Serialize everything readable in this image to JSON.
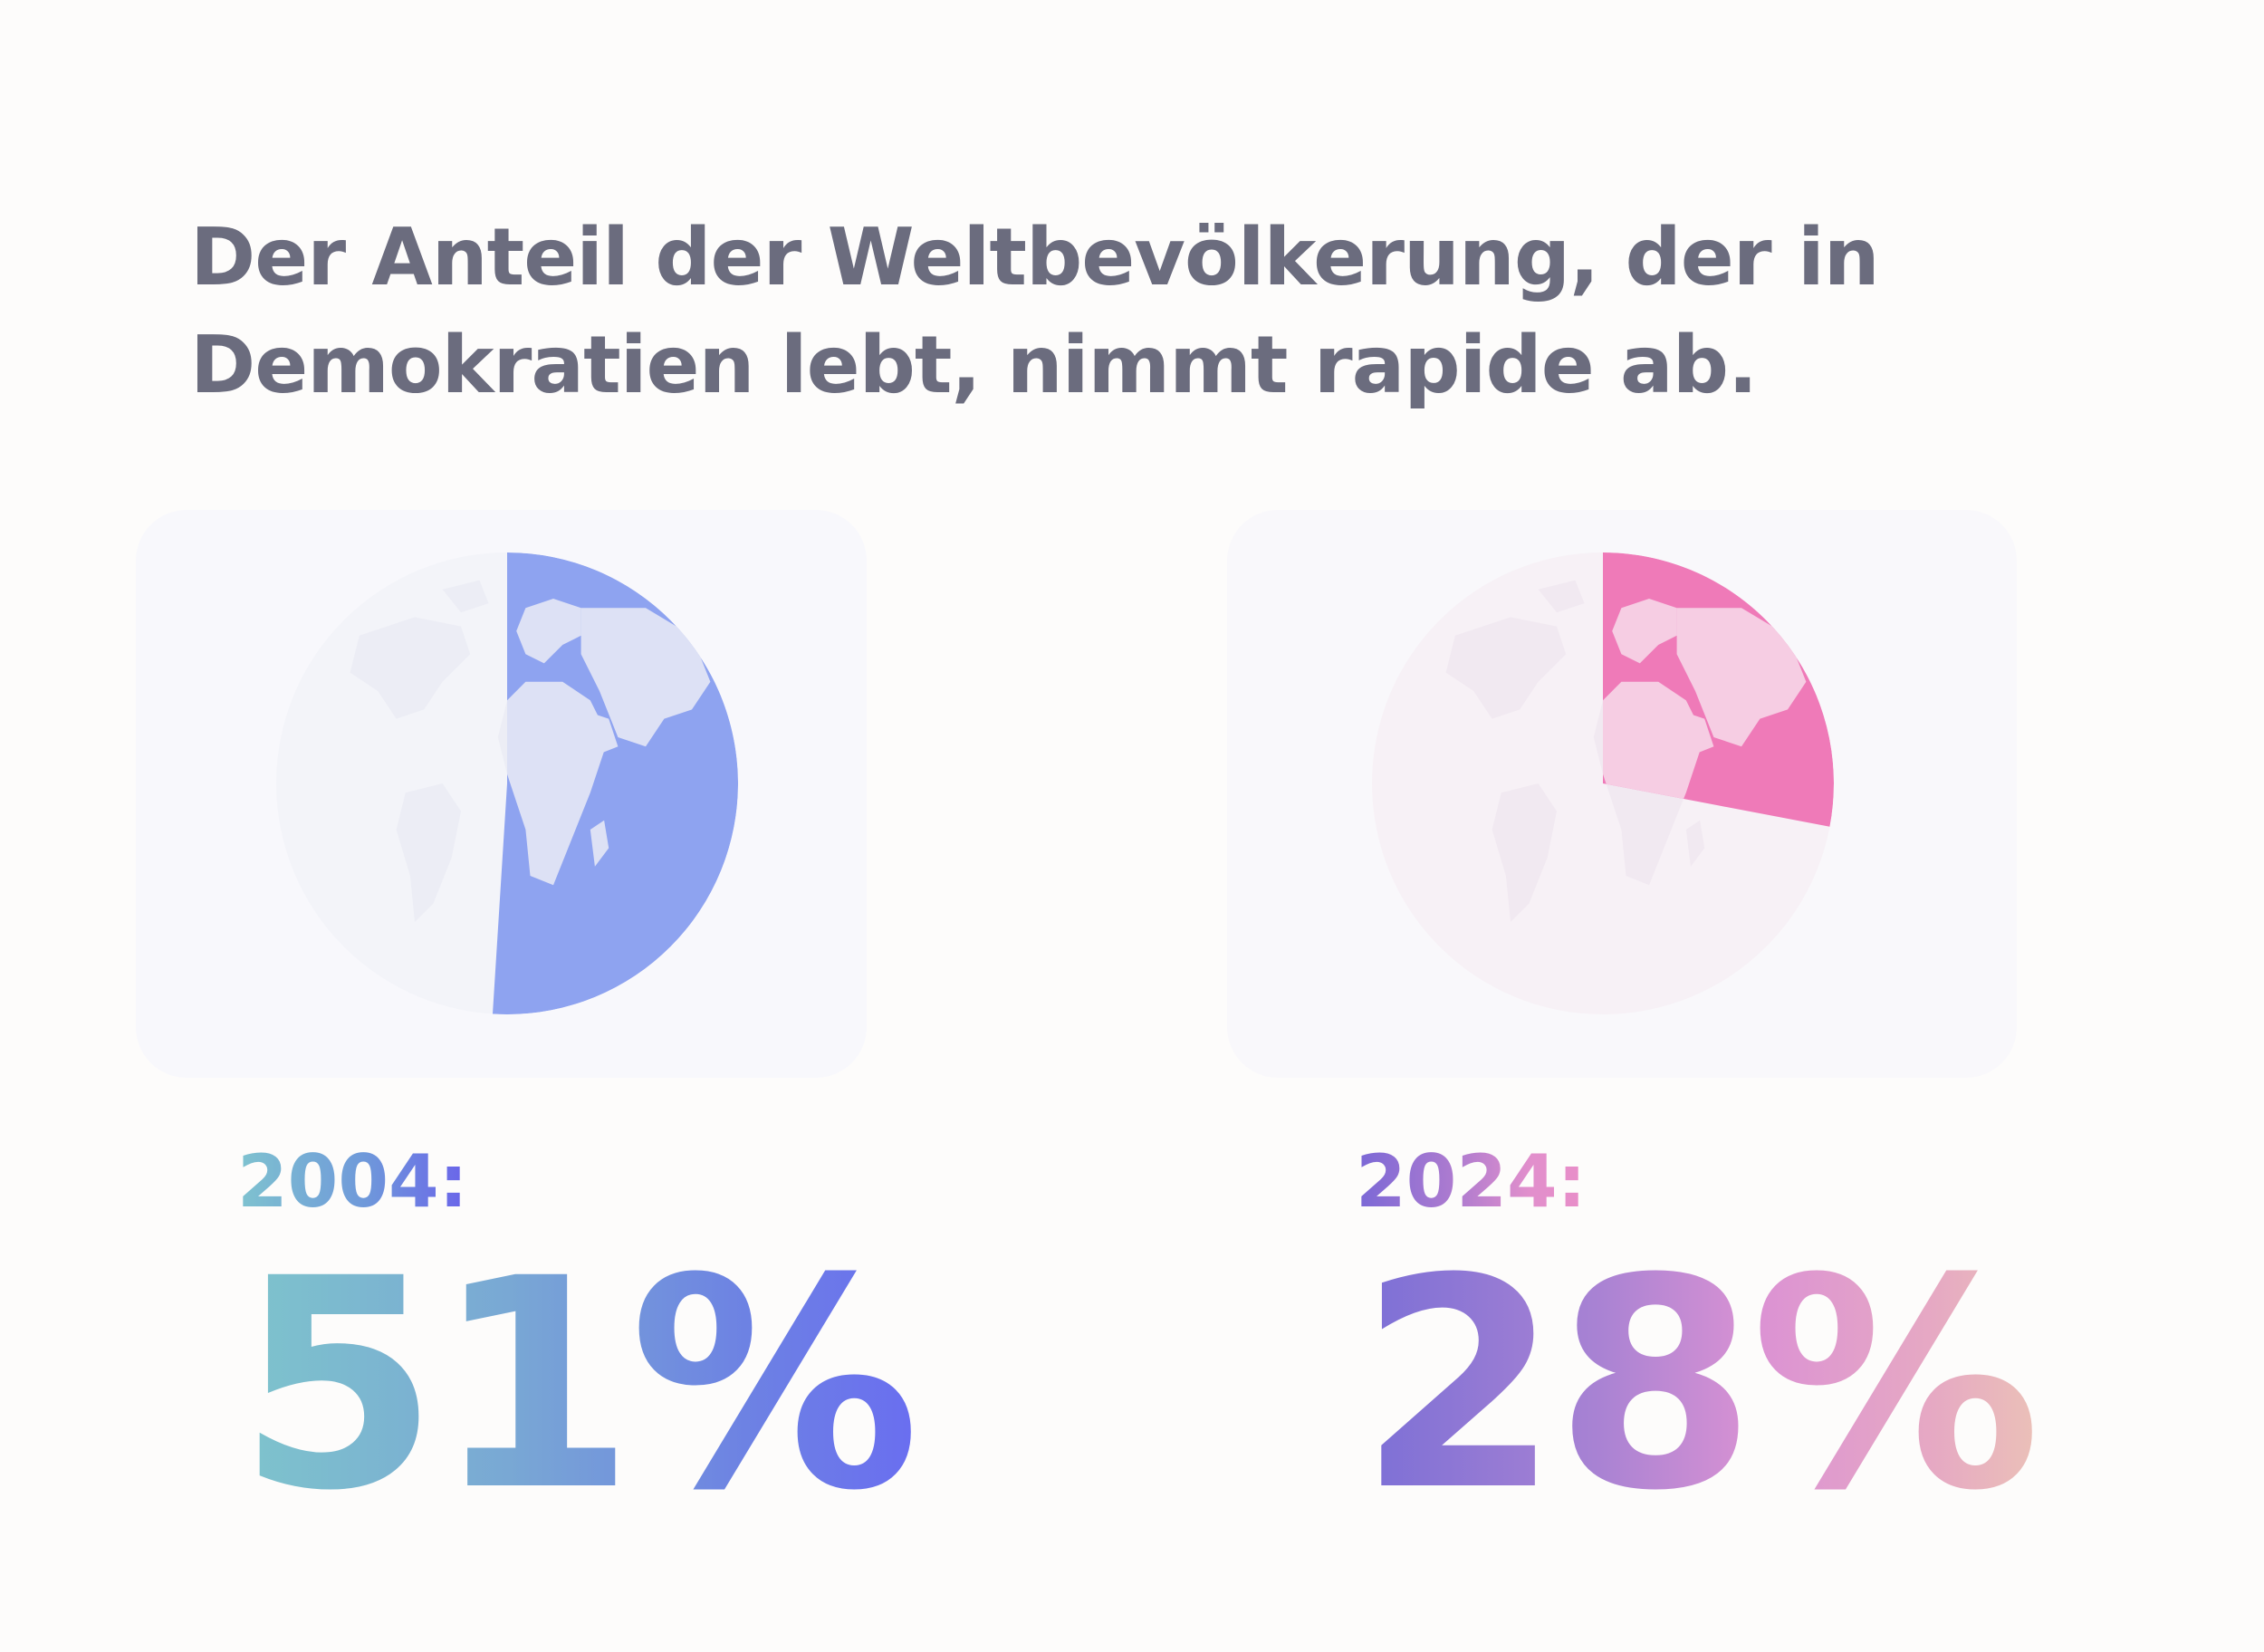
{
  "headline": {
    "line1": "Der Anteil der Weltbevölkerung, der in",
    "line2": "Demokratien lebt, nimmt rapide ab."
  },
  "chart_data": [
    {
      "type": "pie",
      "label": "2004:",
      "value_label": "51%",
      "values": [
        51,
        49
      ],
      "colors": {
        "share": "#8ea3f0",
        "rest": "#f3f4f9",
        "land_share": "#dde1f5",
        "land_rest": "#ecedf5"
      },
      "icon": "globe-icon"
    },
    {
      "type": "pie",
      "label": "2024:",
      "value_label": "28%",
      "values": [
        28,
        72
      ],
      "colors": {
        "share": "#ef7ab8",
        "rest": "#f7f1f6",
        "land_share": "#f6cde3",
        "land_rest": "#f1e9f1"
      },
      "icon": "globe-icon"
    }
  ]
}
